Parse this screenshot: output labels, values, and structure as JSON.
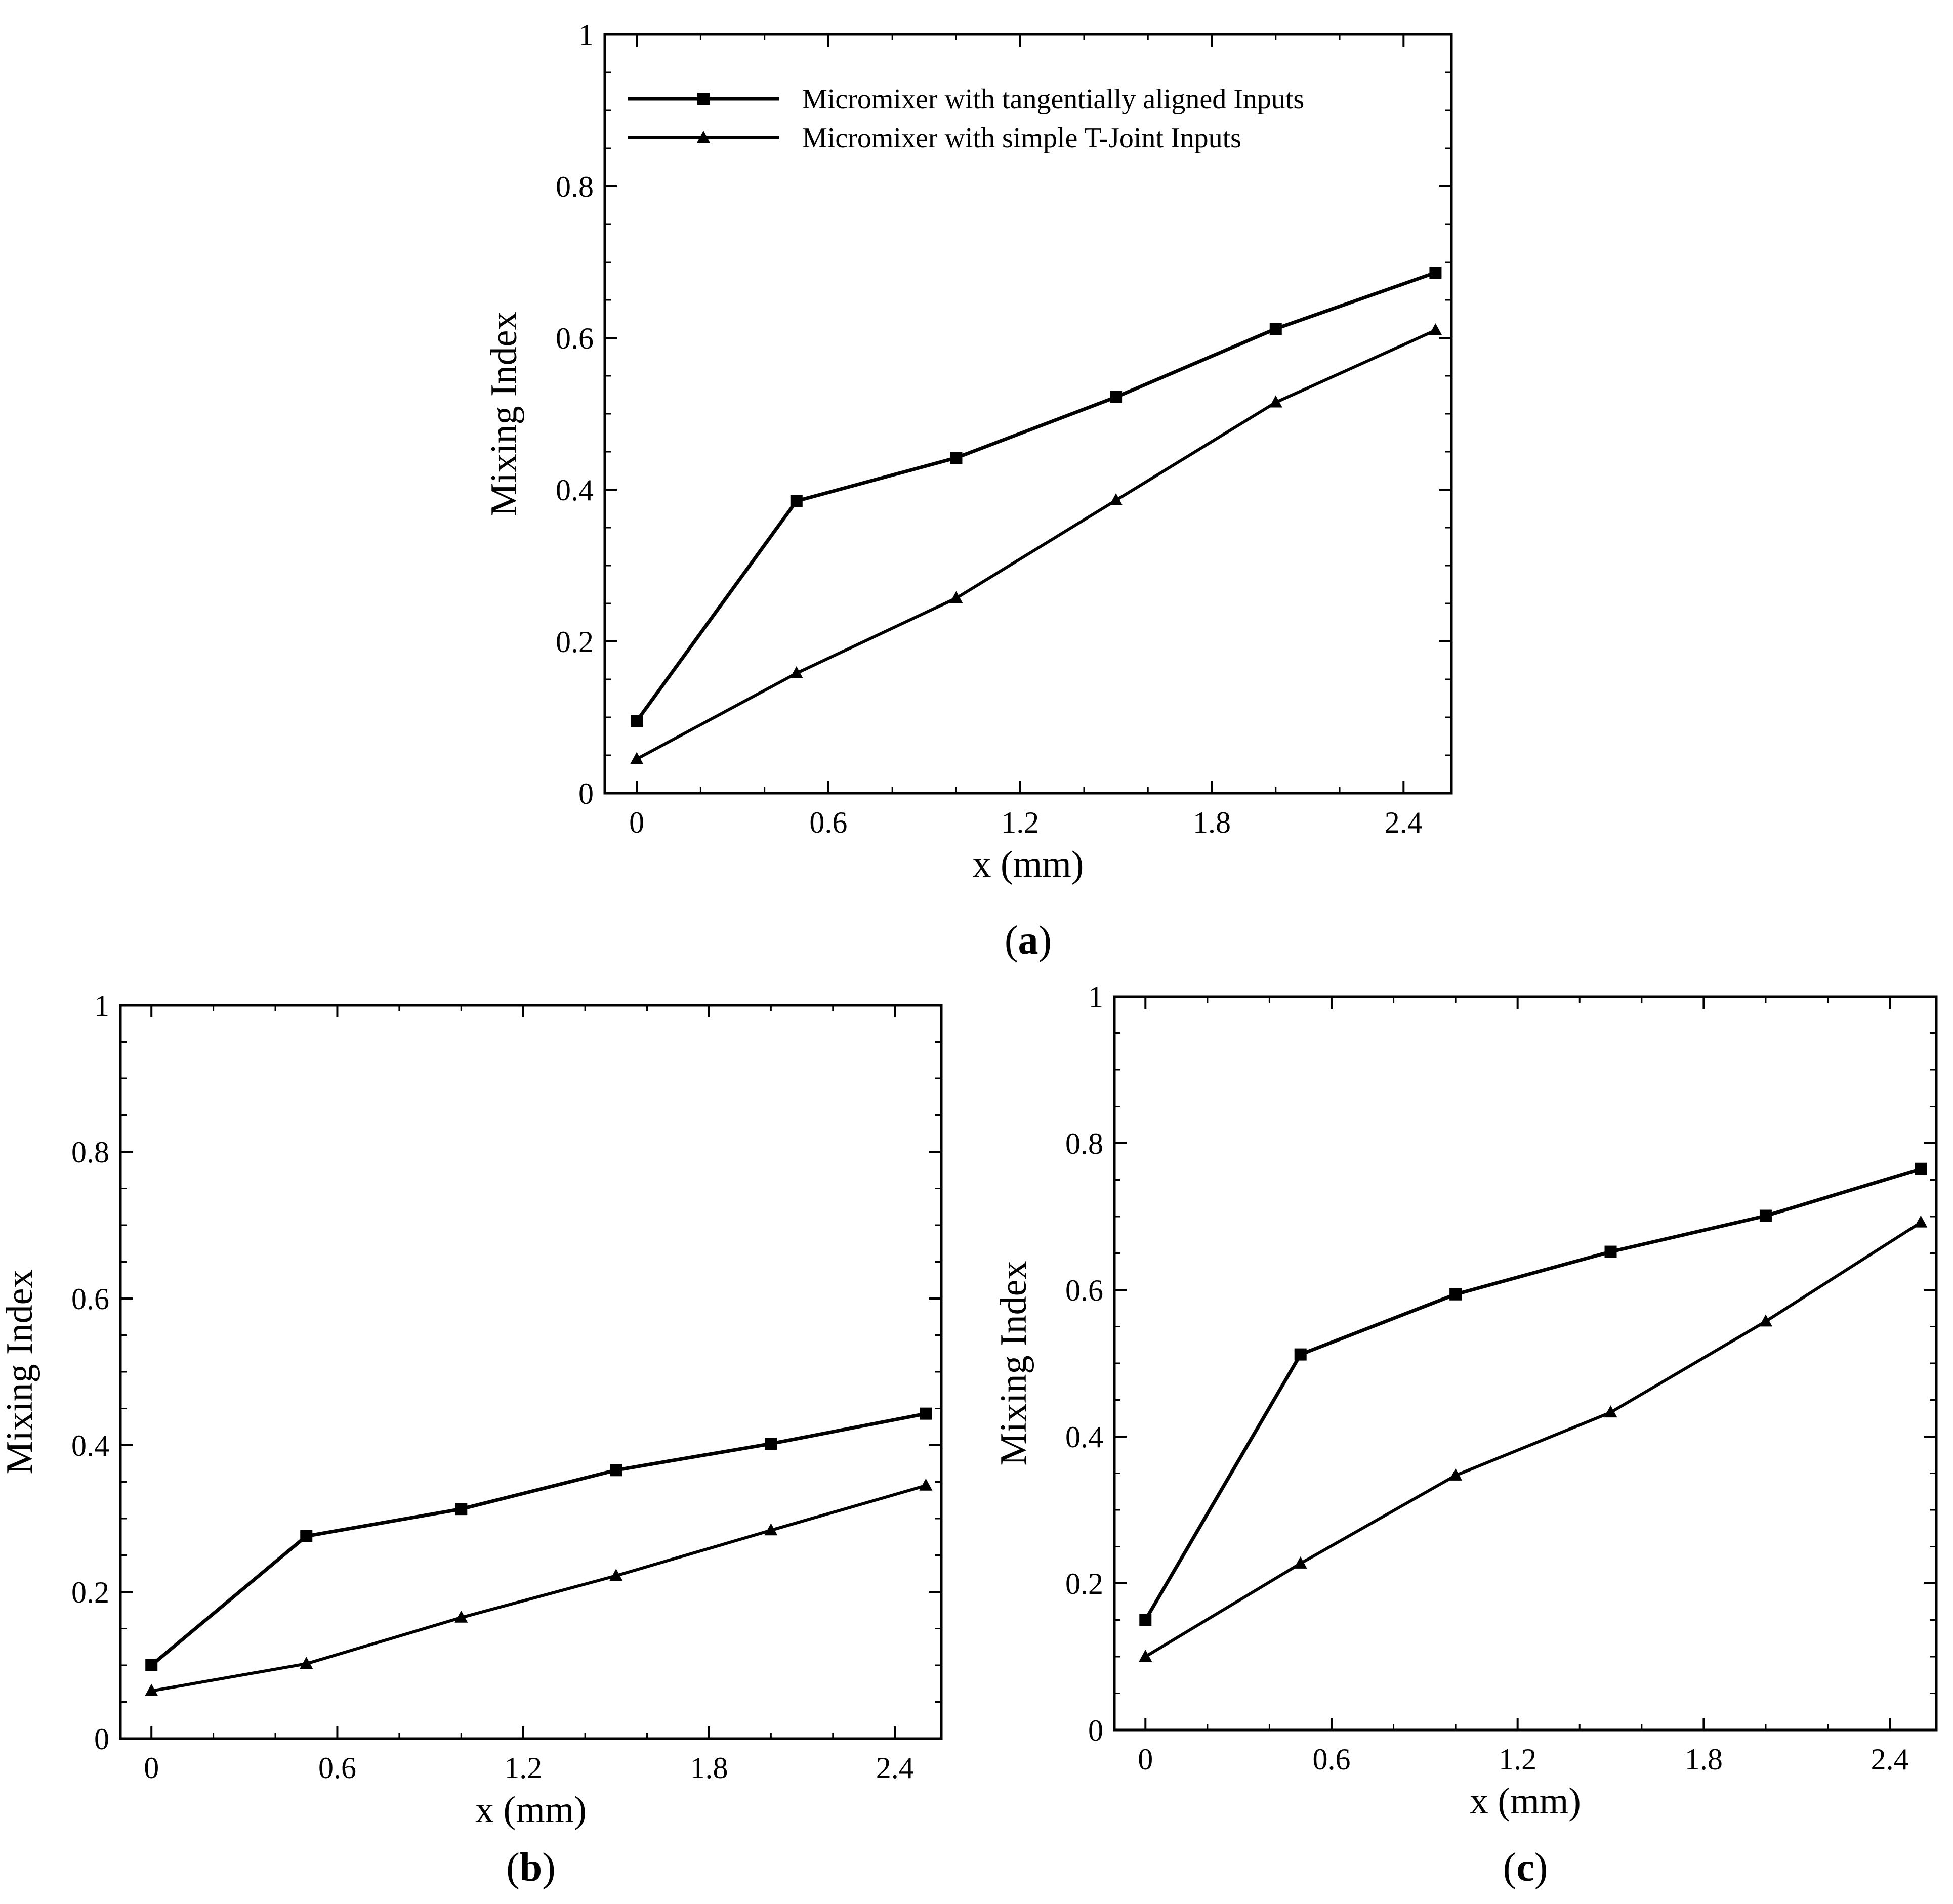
{
  "figure": {
    "legend": [
      "Micromixer with tangentially aligned Inputs",
      "Micromixer with simple T-Joint Inputs"
    ],
    "colors": {
      "line": "#000000",
      "background": "#ffffff"
    }
  },
  "chart_data": [
    {
      "type": "line",
      "panel_label": "a",
      "xlabel": "x (mm)",
      "ylabel": "Mixing Index",
      "xlim": [
        -0.1,
        2.55
      ],
      "ylim": [
        0,
        1
      ],
      "xticks": [
        "0",
        "0.6",
        "1.2",
        "1.8",
        "2.4"
      ],
      "yticks": [
        "0",
        "0.2",
        "0.4",
        "0.6",
        "0.8",
        "1"
      ],
      "legend_position": "top-left",
      "grid": false,
      "series": [
        {
          "name": "Micromixer with tangentially aligned Inputs",
          "marker": "square",
          "x": [
            0,
            0.5,
            1.0,
            1.5,
            2.0,
            2.5
          ],
          "y": [
            0.095,
            0.385,
            0.442,
            0.522,
            0.612,
            0.686
          ]
        },
        {
          "name": "Micromixer with simple T-Joint Inputs",
          "marker": "triangle",
          "x": [
            0,
            0.5,
            1.0,
            1.5,
            2.0,
            2.5
          ],
          "y": [
            0.045,
            0.158,
            0.257,
            0.386,
            0.515,
            0.61
          ]
        }
      ]
    },
    {
      "type": "line",
      "panel_label": "b",
      "xlabel": "x (mm)",
      "ylabel": "Mixing Index",
      "xlim": [
        -0.1,
        2.55
      ],
      "ylim": [
        0,
        1
      ],
      "xticks": [
        "0",
        "0.6",
        "1.2",
        "1.8",
        "2.4"
      ],
      "yticks": [
        "0",
        "0.2",
        "0.4",
        "0.6",
        "0.8",
        "1"
      ],
      "grid": false,
      "series": [
        {
          "name": "Micromixer with tangentially aligned Inputs",
          "marker": "square",
          "x": [
            0,
            0.5,
            1.0,
            1.5,
            2.0,
            2.5
          ],
          "y": [
            0.1,
            0.276,
            0.313,
            0.366,
            0.402,
            0.443
          ]
        },
        {
          "name": "Micromixer with simple T-Joint Inputs",
          "marker": "triangle",
          "x": [
            0,
            0.5,
            1.0,
            1.5,
            2.0,
            2.5
          ],
          "y": [
            0.065,
            0.102,
            0.165,
            0.222,
            0.284,
            0.345
          ]
        }
      ]
    },
    {
      "type": "line",
      "panel_label": "c",
      "xlabel": "x (mm)",
      "ylabel": "Mixing Index",
      "xlim": [
        -0.1,
        2.55
      ],
      "ylim": [
        0,
        1
      ],
      "xticks": [
        "0",
        "0.6",
        "1.2",
        "1.8",
        "2.4"
      ],
      "yticks": [
        "0",
        "0.2",
        "0.4",
        "0.6",
        "0.8",
        "1"
      ],
      "grid": false,
      "series": [
        {
          "name": "Micromixer with tangentially aligned Inputs",
          "marker": "square",
          "x": [
            0,
            0.5,
            1.0,
            1.5,
            2.0,
            2.5
          ],
          "y": [
            0.15,
            0.512,
            0.594,
            0.652,
            0.701,
            0.765
          ]
        },
        {
          "name": "Micromixer with simple T-Joint Inputs",
          "marker": "triangle",
          "x": [
            0,
            0.5,
            1.0,
            1.5,
            2.0,
            2.5
          ],
          "y": [
            0.1,
            0.227,
            0.347,
            0.433,
            0.557,
            0.692
          ]
        }
      ]
    }
  ]
}
